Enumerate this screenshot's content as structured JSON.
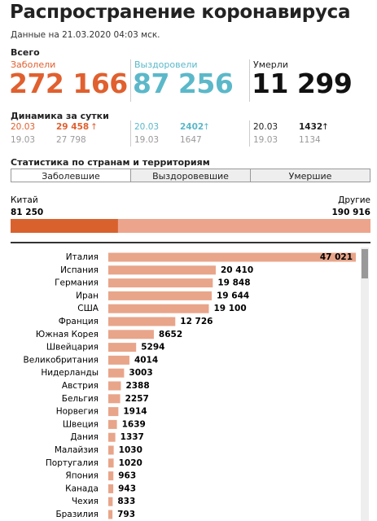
{
  "header": {
    "title": "Распространение коронавируса",
    "subtitle": "Данные на 21.03.2020 04:03 мск."
  },
  "totals": {
    "label": "Всего",
    "columns": [
      {
        "label": "Заболели",
        "value": "272 166",
        "color": "#e0602f"
      },
      {
        "label": "Выздоровели",
        "value": "87 256",
        "color": "#5bb8c9"
      },
      {
        "label": "Умерли",
        "value": "11 299",
        "color": "#111111"
      }
    ]
  },
  "daily": {
    "label": "Динамика за сутки",
    "columns": [
      {
        "today_date": "20.03",
        "today_value": "29 458",
        "arrow": "↑",
        "prev_date": "19.03",
        "prev_value": "27 798",
        "color": "#e0602f"
      },
      {
        "today_date": "20.03",
        "today_value": "2402",
        "arrow": "↑",
        "prev_date": "19.03",
        "prev_value": "1647",
        "color": "#5bb8c9"
      },
      {
        "today_date": "20.03",
        "today_value": "1432",
        "arrow": "↑",
        "prev_date": "19.03",
        "prev_value": "1134",
        "color": "#111111"
      }
    ]
  },
  "section": {
    "title": "Статистика по странам и территориям",
    "tabs": [
      "Заболевшие",
      "Выздоровевшие",
      "Умершие"
    ]
  },
  "chart_data": [
    {
      "type": "stacked-bar",
      "categories": [
        "Китай",
        "Другие"
      ],
      "values": [
        81250,
        190916
      ],
      "value_labels": [
        "81 250",
        "190 916"
      ],
      "colors": [
        "#d9612e",
        "#eda48c"
      ]
    },
    {
      "type": "bar",
      "orientation": "horizontal",
      "color": "#e8a58a",
      "categories": [
        "Италия",
        "Испания",
        "Германия",
        "Иран",
        "США",
        "Франция",
        "Южная Корея",
        "Швейцария",
        "Великобритания",
        "Нидерланды",
        "Австрия",
        "Бельгия",
        "Норвегия",
        "Швеция",
        "Дания",
        "Малайзия",
        "Португалия",
        "Япония",
        "Канада",
        "Чехия",
        "Бразилия"
      ],
      "values": [
        47021,
        20410,
        19848,
        19644,
        19100,
        12726,
        8652,
        5294,
        4014,
        3003,
        2388,
        2257,
        1914,
        1639,
        1337,
        1030,
        1020,
        963,
        943,
        833,
        793
      ],
      "value_labels": [
        "47 021",
        "20 410",
        "19 848",
        "19 644",
        "19 100",
        "12 726",
        "8652",
        "5294",
        "4014",
        "3003",
        "2388",
        "2257",
        "1914",
        "1639",
        "1337",
        "1030",
        "1020",
        "963",
        "943",
        "833",
        "793"
      ]
    }
  ]
}
